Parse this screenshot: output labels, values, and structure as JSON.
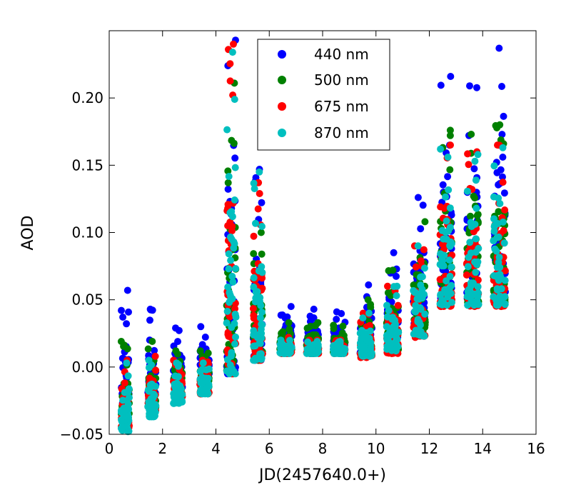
{
  "chart_data": {
    "type": "scatter",
    "title": "",
    "xlabel": "JD(2457640.0+)",
    "ylabel": "AOD",
    "xlim": [
      0,
      16
    ],
    "ylim": [
      -0.05,
      0.25
    ],
    "xticks": [
      0,
      2,
      4,
      6,
      8,
      10,
      12,
      14,
      16
    ],
    "xtick_labels": [
      "0",
      "2",
      "4",
      "6",
      "8",
      "10",
      "12",
      "14",
      "16"
    ],
    "yticks": [
      -0.05,
      0.0,
      0.05,
      0.1,
      0.15,
      0.2
    ],
    "ytick_labels": [
      "−0.05",
      "0.00",
      "0.05",
      "0.10",
      "0.15",
      "0.20"
    ],
    "grid": false,
    "legend_position": "top-center",
    "series": [
      {
        "name": "440 nm",
        "color": "#0000ff",
        "clusters": [
          {
            "x": [
              0.45,
              0.75
            ],
            "y": [
              -0.035,
              0.057
            ]
          },
          {
            "x": [
              1.45,
              1.75
            ],
            "y": [
              -0.025,
              0.043
            ]
          },
          {
            "x": [
              2.4,
              2.75
            ],
            "y": [
              -0.015,
              0.029
            ]
          },
          {
            "x": [
              3.4,
              3.75
            ],
            "y": [
              -0.01,
              0.03
            ]
          },
          {
            "x": [
              4.4,
              4.75
            ],
            "y": [
              -0.005,
              0.243
            ]
          },
          {
            "x": [
              5.4,
              5.75
            ],
            "y": [
              0.005,
              0.147
            ]
          },
          {
            "x": [
              6.4,
              6.85
            ],
            "y": [
              0.015,
              0.045
            ]
          },
          {
            "x": [
              7.4,
              7.85
            ],
            "y": [
              0.015,
              0.043
            ]
          },
          {
            "x": [
              8.4,
              8.85
            ],
            "y": [
              0.013,
              0.041
            ]
          },
          {
            "x": [
              9.4,
              9.85
            ],
            "y": [
              0.01,
              0.061
            ]
          },
          {
            "x": [
              10.4,
              10.85
            ],
            "y": [
              0.015,
              0.085
            ]
          },
          {
            "x": [
              11.4,
              11.85
            ],
            "y": [
              0.03,
              0.126
            ]
          },
          {
            "x": [
              12.4,
              12.85
            ],
            "y": [
              0.05,
              0.216
            ]
          },
          {
            "x": [
              13.4,
              13.85
            ],
            "y": [
              0.05,
              0.209
            ]
          },
          {
            "x": [
              14.4,
              14.85
            ],
            "y": [
              0.05,
              0.237
            ]
          }
        ]
      },
      {
        "name": "500 nm",
        "color": "#008000",
        "clusters": [
          {
            "x": [
              0.45,
              0.75
            ],
            "y": [
              -0.04,
              0.019
            ]
          },
          {
            "x": [
              1.45,
              1.75
            ],
            "y": [
              -0.03,
              0.019
            ]
          },
          {
            "x": [
              2.4,
              2.75
            ],
            "y": [
              -0.02,
              0.012
            ]
          },
          {
            "x": [
              3.4,
              3.75
            ],
            "y": [
              -0.015,
              0.012
            ]
          },
          {
            "x": [
              4.4,
              4.75
            ],
            "y": [
              -0.005,
              0.211
            ]
          },
          {
            "x": [
              5.4,
              5.75
            ],
            "y": [
              0.005,
              0.1
            ]
          },
          {
            "x": [
              6.4,
              6.85
            ],
            "y": [
              0.013,
              0.033
            ]
          },
          {
            "x": [
              7.4,
              7.85
            ],
            "y": [
              0.013,
              0.033
            ]
          },
          {
            "x": [
              8.4,
              8.85
            ],
            "y": [
              0.011,
              0.031
            ]
          },
          {
            "x": [
              9.4,
              9.85
            ],
            "y": [
              0.009,
              0.05
            ]
          },
          {
            "x": [
              10.4,
              10.85
            ],
            "y": [
              0.013,
              0.072
            ]
          },
          {
            "x": [
              11.4,
              11.85
            ],
            "y": [
              0.025,
              0.108
            ]
          },
          {
            "x": [
              12.4,
              12.85
            ],
            "y": [
              0.048,
              0.176
            ]
          },
          {
            "x": [
              13.4,
              13.85
            ],
            "y": [
              0.048,
              0.173
            ]
          },
          {
            "x": [
              14.4,
              14.85
            ],
            "y": [
              0.048,
              0.18
            ]
          }
        ]
      },
      {
        "name": "675 nm",
        "color": "#ff0000",
        "clusters": [
          {
            "x": [
              0.45,
              0.75
            ],
            "y": [
              -0.045,
              0.005
            ]
          },
          {
            "x": [
              1.45,
              1.75
            ],
            "y": [
              -0.035,
              0.008
            ]
          },
          {
            "x": [
              2.4,
              2.75
            ],
            "y": [
              -0.025,
              0.005
            ]
          },
          {
            "x": [
              3.4,
              3.75
            ],
            "y": [
              -0.02,
              0.005
            ]
          },
          {
            "x": [
              4.4,
              4.75
            ],
            "y": [
              -0.005,
              0.24
            ]
          },
          {
            "x": [
              5.4,
              5.75
            ],
            "y": [
              0.005,
              0.137
            ]
          },
          {
            "x": [
              6.4,
              6.85
            ],
            "y": [
              0.01,
              0.022
            ]
          },
          {
            "x": [
              7.4,
              7.85
            ],
            "y": [
              0.01,
              0.02
            ]
          },
          {
            "x": [
              8.4,
              8.85
            ],
            "y": [
              0.01,
              0.02
            ]
          },
          {
            "x": [
              9.4,
              9.85
            ],
            "y": [
              0.007,
              0.04
            ]
          },
          {
            "x": [
              10.4,
              10.85
            ],
            "y": [
              0.01,
              0.06
            ]
          },
          {
            "x": [
              11.4,
              11.85
            ],
            "y": [
              0.022,
              0.09
            ]
          },
          {
            "x": [
              12.4,
              12.85
            ],
            "y": [
              0.045,
              0.165
            ]
          },
          {
            "x": [
              13.4,
              13.85
            ],
            "y": [
              0.045,
              0.16
            ]
          },
          {
            "x": [
              14.4,
              14.85
            ],
            "y": [
              0.045,
              0.165
            ]
          }
        ]
      },
      {
        "name": "870 nm",
        "color": "#00bfbf",
        "clusters": [
          {
            "x": [
              0.45,
              0.75
            ],
            "y": [
              -0.048,
              0.003
            ]
          },
          {
            "x": [
              1.45,
              1.75
            ],
            "y": [
              -0.037,
              0.005
            ]
          },
          {
            "x": [
              2.4,
              2.75
            ],
            "y": [
              -0.027,
              0.003
            ]
          },
          {
            "x": [
              3.4,
              3.75
            ],
            "y": [
              -0.02,
              0.003
            ]
          },
          {
            "x": [
              4.4,
              4.75
            ],
            "y": [
              -0.005,
              0.234
            ]
          },
          {
            "x": [
              5.4,
              5.75
            ],
            "y": [
              0.005,
              0.145
            ]
          },
          {
            "x": [
              6.4,
              6.85
            ],
            "y": [
              0.01,
              0.02
            ]
          },
          {
            "x": [
              7.4,
              7.85
            ],
            "y": [
              0.01,
              0.019
            ]
          },
          {
            "x": [
              8.4,
              8.85
            ],
            "y": [
              0.01,
              0.019
            ]
          },
          {
            "x": [
              9.4,
              9.85
            ],
            "y": [
              0.008,
              0.04
            ]
          },
          {
            "x": [
              10.4,
              10.85
            ],
            "y": [
              0.012,
              0.06
            ]
          },
          {
            "x": [
              11.4,
              11.85
            ],
            "y": [
              0.023,
              0.09
            ]
          },
          {
            "x": [
              12.4,
              12.85
            ],
            "y": [
              0.046,
              0.162
            ]
          },
          {
            "x": [
              13.4,
              13.85
            ],
            "y": [
              0.046,
              0.158
            ]
          },
          {
            "x": [
              14.4,
              14.85
            ],
            "y": [
              0.046,
              0.163
            ]
          }
        ]
      }
    ]
  }
}
